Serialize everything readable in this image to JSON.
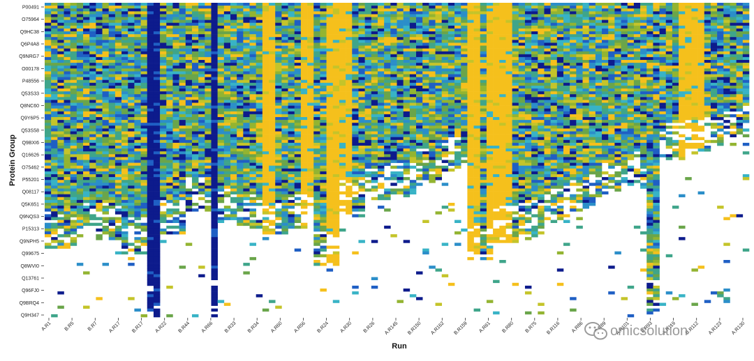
{
  "chart_data": {
    "type": "heatmap",
    "xlabel": "Run",
    "ylabel": "Protein Group",
    "y_tick_labels": [
      "P00491",
      "O75964",
      "Q9HC38",
      "Q6P4A8",
      "Q9NRG7",
      "O00178",
      "P48556",
      "Q53S33",
      "Q8NC60",
      "Q9Y6P5",
      "Q53S58",
      "Q9BXI6",
      "Q16626",
      "O75462",
      "P55201",
      "Q08117",
      "Q5K651",
      "Q9NQS3",
      "P15313",
      "Q9NPH5",
      "Q99675",
      "Q8WVI0",
      "Q13761",
      "Q96FJ0",
      "Q9BRQ4",
      "Q9H347"
    ],
    "x_tick_labels": [
      "A.R1",
      "B.R5",
      "B.R7",
      "A.R17",
      "B.R17",
      "A.R22",
      "B.R44",
      "A.R66",
      "B.R33",
      "B.R34",
      "A.R60",
      "A.R56",
      "B.R24",
      "A.R30",
      "B.R26",
      "A.R145",
      "B.R150",
      "A.R162",
      "B.R159",
      "A.R61",
      "B.R80",
      "B.R75",
      "B.R116",
      "A.R86",
      "B.R89",
      "A.R101",
      "B.R93",
      "A.R119",
      "B.R112",
      "A.R123",
      "A.R130"
    ],
    "n_columns": 110,
    "n_rows": 110,
    "color_scale": [
      "#0d1b8c",
      "#1f5fc4",
      "#2b8ec9",
      "#38b3c6",
      "#3fa58a",
      "#6aa54a",
      "#93b431",
      "#c4c42a",
      "#f5c01c"
    ],
    "missing_color": "#ffffff",
    "orange_columns": [
      34,
      35,
      40,
      41,
      44,
      45,
      46,
      47,
      66,
      67,
      69,
      70,
      71,
      72,
      99,
      100,
      101,
      102
    ],
    "blue_columns": [
      16,
      17,
      26
    ],
    "column_coverage": [
      0.78,
      0.78,
      0.78,
      0.78,
      0.78,
      0.72,
      0.72,
      0.72,
      0.75,
      0.75,
      0.75,
      0.75,
      0.8,
      0.8,
      0.8,
      0.8,
      1.0,
      1.0,
      0.74,
      0.74,
      0.74,
      0.74,
      0.66,
      0.66,
      0.66,
      0.66,
      1.0,
      0.7,
      0.7,
      0.7,
      0.72,
      0.72,
      0.72,
      0.72,
      0.74,
      0.74,
      0.74,
      0.74,
      0.72,
      0.72,
      0.72,
      0.72,
      0.84,
      0.84,
      0.84,
      0.84,
      0.68,
      0.68,
      0.68,
      0.68,
      0.63,
      0.63,
      0.63,
      0.63,
      0.62,
      0.62,
      0.62,
      0.62,
      0.58,
      0.58,
      0.58,
      0.58,
      0.54,
      0.54,
      0.54,
      0.54,
      0.82,
      0.82,
      0.82,
      0.82,
      0.76,
      0.76,
      0.76,
      0.76,
      0.74,
      0.74,
      0.74,
      0.74,
      0.7,
      0.7,
      0.7,
      0.7,
      0.66,
      0.66,
      0.66,
      0.66,
      0.62,
      0.62,
      0.62,
      0.62,
      0.58,
      0.58,
      0.58,
      0.58,
      1.0,
      1.0,
      0.5,
      0.5,
      0.5,
      0.5,
      0.48,
      0.48,
      0.48,
      0.48,
      0.45,
      0.45,
      0.45,
      0.45,
      0.43,
      0.43
    ]
  },
  "watermark": {
    "text": "omicsolution",
    "icon": "wechat-icon"
  }
}
